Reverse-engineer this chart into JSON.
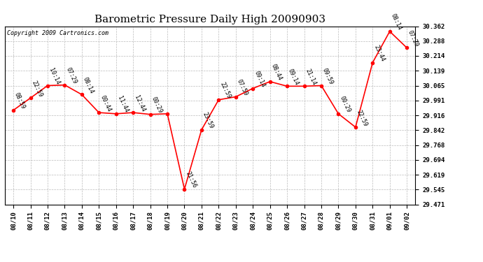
{
  "title": "Barometric Pressure Daily High 20090903",
  "copyright": "Copyright 2009 Cartronics.com",
  "x_labels": [
    "08/10",
    "08/11",
    "08/12",
    "08/13",
    "08/14",
    "08/15",
    "08/16",
    "08/17",
    "08/18",
    "08/19",
    "08/20",
    "08/21",
    "08/22",
    "08/23",
    "08/24",
    "08/25",
    "08/26",
    "08/27",
    "08/28",
    "08/29",
    "08/30",
    "08/31",
    "09/01",
    "09/02"
  ],
  "y_values": [
    29.942,
    30.003,
    30.065,
    30.068,
    30.02,
    29.93,
    29.924,
    29.93,
    29.921,
    29.924,
    29.547,
    29.844,
    29.994,
    30.009,
    30.051,
    30.085,
    30.062,
    30.062,
    30.065,
    29.924,
    29.857,
    30.18,
    30.336,
    30.254
  ],
  "point_labels": [
    "08:59",
    "22:59",
    "10:14",
    "07:29",
    "08:14",
    "00:44",
    "11:44",
    "12:44",
    "00:29",
    "",
    "21:56",
    "23:59",
    "22:59",
    "07:59",
    "09:14",
    "08:44",
    "09:14",
    "21:14",
    "09:59",
    "00:29",
    "22:59",
    "23:44",
    "08:14",
    "07:29"
  ],
  "ylim_min": 29.471,
  "ylim_max": 30.362,
  "yticks": [
    29.471,
    29.545,
    29.619,
    29.694,
    29.768,
    29.842,
    29.916,
    29.991,
    30.065,
    30.139,
    30.214,
    30.288,
    30.362
  ],
  "line_color": "red",
  "marker_color": "red",
  "marker_size": 3,
  "background_color": "white",
  "grid_color": "#bbbbbb",
  "title_fontsize": 11,
  "tick_fontsize": 6.5,
  "point_label_fontsize": 6,
  "copyright_fontsize": 6
}
